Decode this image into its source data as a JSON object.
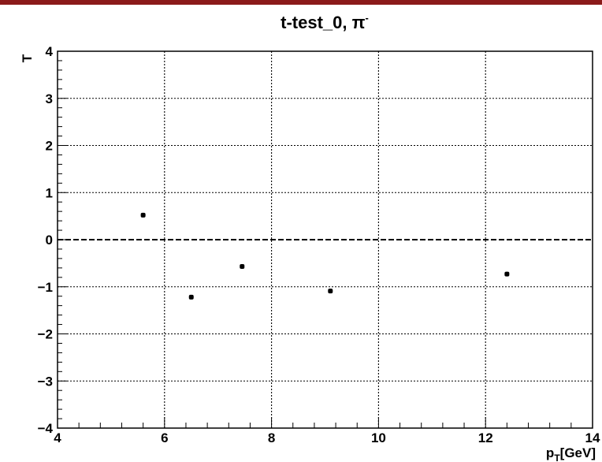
{
  "chart_data": {
    "type": "scatter",
    "title_main": "t-test_0, π",
    "title_sup": "-",
    "xlabel_main": "p",
    "xlabel_sub": "T",
    "xlabel_unit": "[GeV]",
    "ylabel": "T",
    "xlim": [
      4,
      14
    ],
    "ylim": [
      -4,
      4
    ],
    "x_ticks": [
      4,
      6,
      8,
      10,
      12,
      14
    ],
    "x_tick_labels": [
      "4",
      "6",
      "8",
      "10",
      "12",
      "14"
    ],
    "y_ticks": [
      -4,
      -3,
      -2,
      -1,
      0,
      1,
      2,
      3,
      4
    ],
    "y_tick_labels": [
      "−4",
      "−3",
      "−2",
      "−1",
      "0",
      "1",
      "2",
      "3",
      "4"
    ],
    "grid": true,
    "reference_line_y": 0,
    "series": [
      {
        "x": [
          5.6,
          6.5,
          7.45,
          9.1,
          12.4
        ],
        "y": [
          0.52,
          -1.22,
          -0.57,
          -1.09,
          -0.73
        ]
      }
    ],
    "colors": {
      "frame": "#000000",
      "grid": "#000000",
      "marker": "#000000",
      "top_bar": "#8b1a1a"
    }
  }
}
